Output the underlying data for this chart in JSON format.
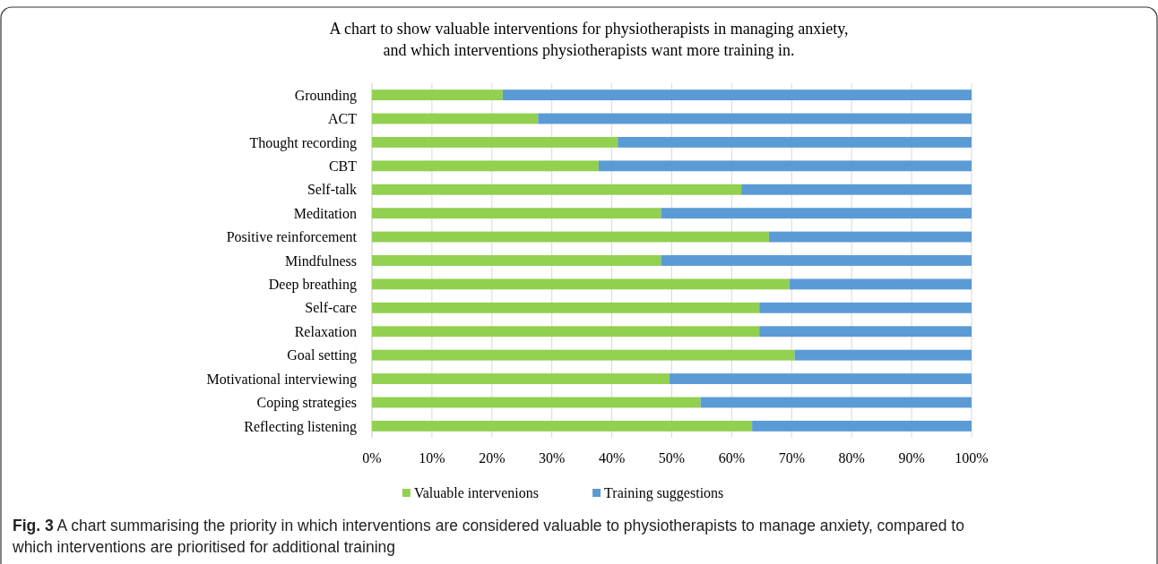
{
  "chart_data": {
    "type": "bar",
    "orientation": "horizontal",
    "stacked": true,
    "title": "A chart to show valuable interventions for physiotherapists in managing anxiety, and which interventions physiotherapists want more training in.",
    "categories": [
      "Grounding",
      "ACT",
      "Thought recording",
      "CBT",
      "Self-talk",
      "Meditation",
      "Positive reinforcement",
      "Mindfulness",
      "Deep breathing",
      "Self-care",
      "Relaxation",
      "Goal setting",
      "Motivational interviewing",
      "Coping strategies",
      "Reflecting listening"
    ],
    "series": [
      {
        "name": "Valuable intervenions",
        "color": "#92d050",
        "values": [
          21.8,
          27.7,
          41.0,
          37.8,
          61.6,
          48.2,
          66.2,
          48.2,
          69.6,
          64.6,
          64.6,
          70.5,
          49.6,
          54.8,
          63.4
        ]
      },
      {
        "name": "Training suggestions",
        "color": "#5b9bd5",
        "values": [
          78.2,
          72.3,
          59.0,
          62.2,
          38.4,
          51.8,
          33.8,
          51.8,
          30.4,
          35.4,
          35.4,
          29.5,
          50.4,
          45.2,
          36.6
        ]
      }
    ],
    "xlim": [
      0,
      100
    ],
    "xticks": [
      {
        "value": 0,
        "label": "0%"
      },
      {
        "value": 10,
        "label": "10%"
      },
      {
        "value": 20,
        "label": "20%"
      },
      {
        "value": 30,
        "label": "30%"
      },
      {
        "value": 40,
        "label": "40%"
      },
      {
        "value": 50,
        "label": "50%"
      },
      {
        "value": 60,
        "label": "60%"
      },
      {
        "value": 70,
        "label": "70%"
      },
      {
        "value": 80,
        "label": "80%"
      },
      {
        "value": 90,
        "label": "90%"
      },
      {
        "value": 100,
        "label": "100%"
      }
    ],
    "grid": "x",
    "legend": "bottom",
    "annotations": [
      "Fig. 3 A chart summarising the priority in which interventions are considered valuable to physiotherapists to manage anxiety, compared to which interventions are prioritised for additional training"
    ]
  }
}
